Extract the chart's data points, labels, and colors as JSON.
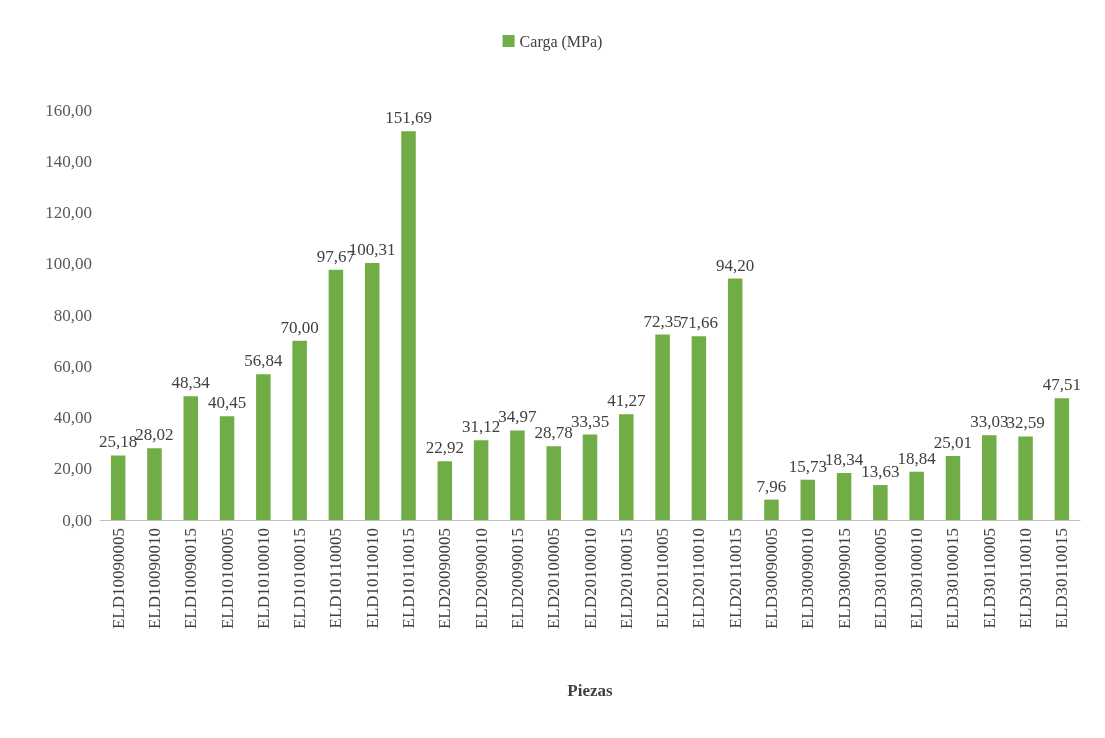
{
  "chart_data": {
    "type": "bar",
    "xlabel": "Piezas",
    "legend": "top",
    "categories": [
      "ELD10090005",
      "ELD10090010",
      "ELD10090015",
      "ELD10100005",
      "ELD10100010",
      "ELD10100015",
      "ELD10110005",
      "ELD10110010",
      "ELD10110015",
      "ELD20090005",
      "ELD20090010",
      "ELD20090015",
      "ELD20100005",
      "ELD20100010",
      "ELD20100015",
      "ELD20110005",
      "ELD20110010",
      "ELD20110015",
      "ELD30090005",
      "ELD30090010",
      "ELD30090015",
      "ELD30100005",
      "ELD30100010",
      "ELD30100015",
      "ELD30110005",
      "ELD30110010",
      "ELD30110015"
    ],
    "series": [
      {
        "name": "Carga (MPa)",
        "color": "#70ad47",
        "values": [
          25.18,
          28.02,
          48.34,
          40.45,
          56.84,
          70.0,
          97.67,
          100.31,
          151.69,
          22.92,
          31.12,
          34.97,
          28.78,
          33.35,
          41.27,
          72.35,
          71.66,
          94.2,
          7.96,
          15.73,
          18.34,
          13.63,
          18.84,
          25.01,
          33.03,
          32.59,
          47.51
        ],
        "value_labels": [
          "25,18",
          "28,02",
          "48,34",
          "40,45",
          "56,84",
          "70,00",
          "97,67",
          "100,31",
          "151,69",
          "22,92",
          "31,12",
          "34,97",
          "28,78",
          "33,35",
          "41,27",
          "72,35",
          "71,66",
          "94,20",
          "7,96",
          "15,73",
          "18,34",
          "13,63",
          "18,84",
          "25,01",
          "33,03",
          "32,59",
          "47,51"
        ]
      }
    ],
    "ylim": [
      0,
      160
    ],
    "yticks": [
      {
        "value": 0,
        "label": "0,00"
      },
      {
        "value": 20,
        "label": "20,00"
      },
      {
        "value": 40,
        "label": "40,00"
      },
      {
        "value": 60,
        "label": "60,00"
      },
      {
        "value": 80,
        "label": "80,00"
      },
      {
        "value": 100,
        "label": "100,00"
      },
      {
        "value": 120,
        "label": "120,00"
      },
      {
        "value": 140,
        "label": "140,00"
      },
      {
        "value": 160,
        "label": "160,00"
      }
    ],
    "grid": false
  }
}
